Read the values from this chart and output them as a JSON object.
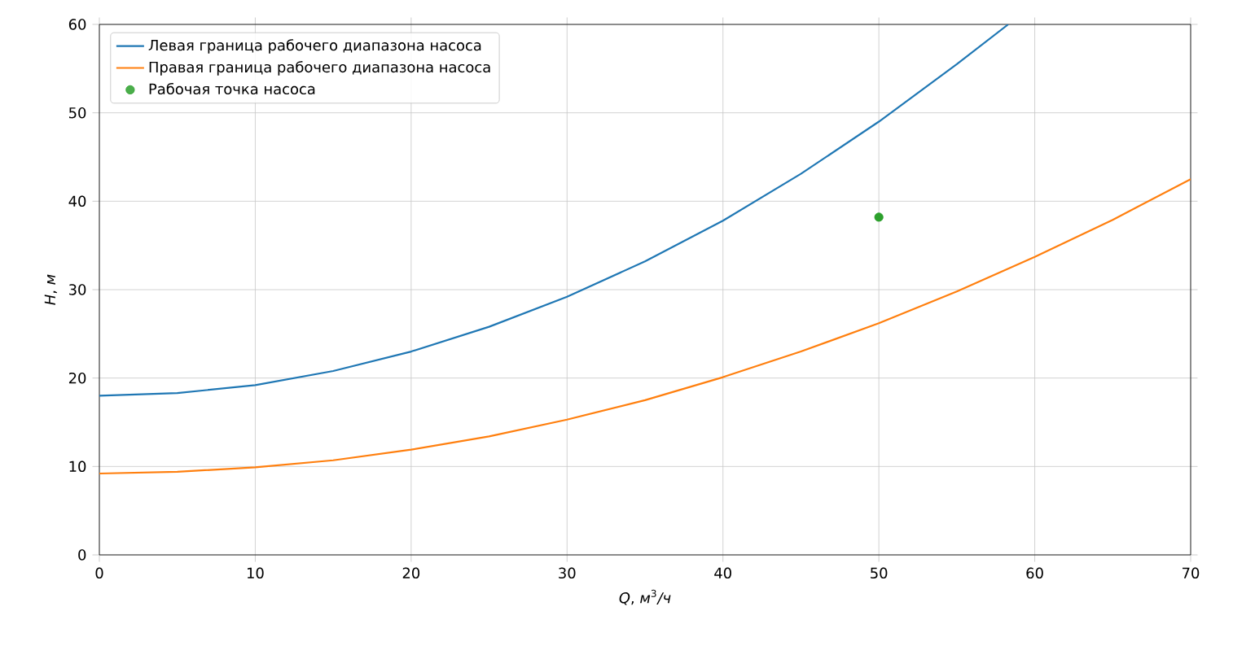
{
  "chart_data": {
    "type": "line",
    "xlabel": "*Q*, *м*$^{3}$*/ч*",
    "ylabel": "*H*, *м*",
    "series": [
      {
        "name": "Левая граница рабочего диапазона насоса",
        "color": "#1f77b4",
        "x": [
          0,
          5,
          10,
          15,
          20,
          25,
          30,
          35,
          40,
          45,
          50,
          55,
          58.3
        ],
        "values": [
          18,
          18.3,
          19.2,
          20.8,
          23,
          25.8,
          29.2,
          33.2,
          37.8,
          43.1,
          49,
          55.5,
          60
        ]
      },
      {
        "name": "Правая граница рабочего диапазона насоса",
        "color": "#ff7f0e",
        "x": [
          0,
          5,
          10,
          15,
          20,
          25,
          30,
          35,
          40,
          45,
          50,
          55,
          60,
          65,
          70
        ],
        "values": [
          9.2,
          9.4,
          9.9,
          10.7,
          11.9,
          13.4,
          15.3,
          17.5,
          20.1,
          23,
          26.2,
          29.8,
          33.7,
          37.9,
          42.5
        ]
      },
      {
        "name": "Рабочая точка насоса",
        "type": "scatter",
        "marker": "circle",
        "color": "#2ca02c",
        "x": [
          50
        ],
        "values": [
          38.2
        ]
      }
    ],
    "xlim": [
      0,
      70
    ],
    "ylim": [
      0,
      60
    ],
    "xticks": [
      0,
      10,
      20,
      30,
      40,
      50,
      60,
      70
    ],
    "yticks": [
      0,
      10,
      20,
      30,
      40,
      50,
      60
    ],
    "grid": true,
    "legend": "top left"
  }
}
